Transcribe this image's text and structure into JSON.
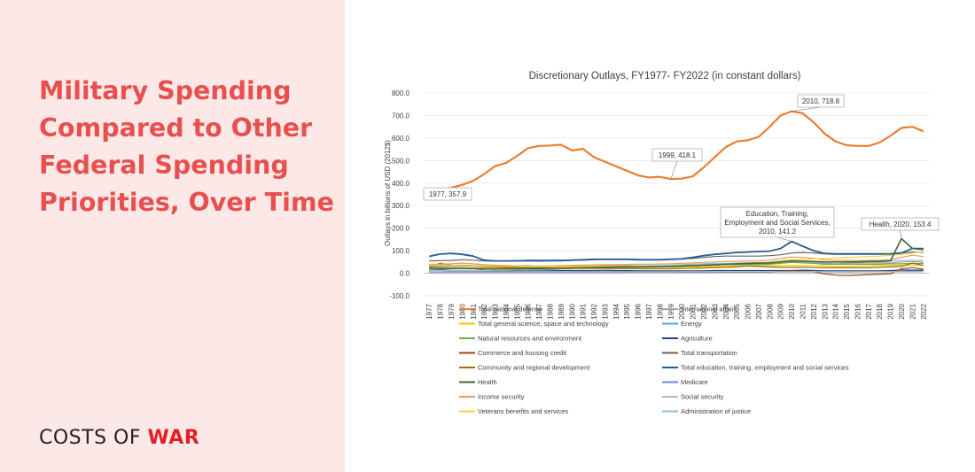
{
  "headline": {
    "lines": [
      "Military Spending",
      "Compared to Other",
      "Federal Spending",
      "Priorities, Over Time"
    ]
  },
  "brand": {
    "part1": "COSTS OF ",
    "part2": "WAR"
  },
  "colors": {
    "accent": "#e8504f",
    "panel_bg": "#fde8e8",
    "brand_red": "#e31e24"
  },
  "chart_data": {
    "type": "line",
    "title": "Discretionary Outlays, FY1977- FY2022 (in constant dollars)",
    "ylabel": "Outlays in billions of USD (2012$)",
    "xlabel": "",
    "ylim": [
      -100,
      800
    ],
    "yticks": [
      "-100.0",
      "0.0",
      "100.0",
      "200.0",
      "300.0",
      "400.0",
      "500.0",
      "600.0",
      "700.0",
      "800.0"
    ],
    "grid": true,
    "legend_position": "bottom",
    "x": [
      1977,
      1978,
      1979,
      1980,
      1981,
      1982,
      1983,
      1984,
      1985,
      1986,
      1987,
      1988,
      1989,
      1990,
      1991,
      1992,
      1993,
      1994,
      1995,
      1996,
      1997,
      1998,
      1999,
      2000,
      2001,
      2002,
      2003,
      2004,
      2005,
      2006,
      2007,
      2008,
      2009,
      2010,
      2011,
      2012,
      2013,
      2014,
      2015,
      2016,
      2017,
      2018,
      2019,
      2020,
      2021,
      2022
    ],
    "series": [
      {
        "name": "Total national defense",
        "color": "#ed7d31",
        "width": 2.2,
        "values": [
          357.9,
          370,
          380,
          392,
          410,
          440,
          475,
          490,
          520,
          555,
          565,
          567,
          570,
          545,
          552,
          515,
          495,
          475,
          455,
          435,
          425,
          428,
          418.1,
          420,
          430,
          470,
          515,
          560,
          585,
          590,
          605,
          650,
          700,
          718.8,
          710,
          670,
          620,
          585,
          568,
          565,
          565,
          580,
          610,
          645,
          650,
          630
        ]
      },
      {
        "name": "International affairs",
        "color": "#a5a5a5",
        "values": [
          28,
          28,
          30,
          30,
          32,
          28,
          28,
          30,
          32,
          34,
          28,
          28,
          28,
          30,
          32,
          30,
          30,
          28,
          26,
          26,
          26,
          27,
          28,
          28,
          28,
          30,
          36,
          40,
          42,
          40,
          42,
          45,
          50,
          52,
          50,
          48,
          44,
          42,
          44,
          46,
          46,
          46,
          46,
          50,
          52,
          50
        ]
      },
      {
        "name": "Total general science, space and technology",
        "color": "#ffc000",
        "values": [
          22,
          22,
          23,
          23,
          23,
          22,
          22,
          22,
          23,
          23,
          24,
          25,
          26,
          27,
          28,
          29,
          29,
          29,
          28,
          27,
          27,
          27,
          27,
          27,
          28,
          29,
          30,
          31,
          32,
          32,
          32,
          33,
          34,
          35,
          34,
          33,
          32,
          31,
          31,
          32,
          33,
          34,
          35,
          35,
          36,
          36
        ]
      },
      {
        "name": "Energy",
        "color": "#5b9bd5",
        "values": [
          15,
          18,
          20,
          22,
          22,
          14,
          10,
          10,
          10,
          10,
          8,
          8,
          7,
          7,
          8,
          8,
          8,
          8,
          8,
          7,
          7,
          7,
          6,
          6,
          6,
          6,
          6,
          6,
          6,
          6,
          6,
          6,
          8,
          12,
          14,
          12,
          10,
          9,
          9,
          9,
          9,
          9,
          9,
          9,
          10,
          12
        ]
      },
      {
        "name": "Natural resources and environment",
        "color": "#70ad47",
        "values": [
          30,
          32,
          34,
          36,
          34,
          32,
          30,
          30,
          30,
          30,
          30,
          30,
          30,
          31,
          31,
          32,
          33,
          33,
          33,
          32,
          32,
          32,
          33,
          34,
          35,
          36,
          37,
          38,
          38,
          38,
          38,
          40,
          44,
          48,
          46,
          44,
          40,
          40,
          40,
          40,
          40,
          40,
          42,
          42,
          44,
          44
        ]
      },
      {
        "name": "Agriculture",
        "color": "#264478",
        "values": [
          12,
          14,
          12,
          12,
          12,
          12,
          14,
          13,
          14,
          15,
          14,
          13,
          12,
          12,
          12,
          12,
          13,
          12,
          12,
          11,
          11,
          11,
          11,
          11,
          11,
          11,
          12,
          12,
          12,
          12,
          12,
          12,
          12,
          12,
          12,
          12,
          11,
          11,
          11,
          11,
          11,
          11,
          12,
          14,
          14,
          13
        ]
      },
      {
        "name": "Commerce and housing credit",
        "color": "#9e480e",
        "values": [
          12,
          12,
          10,
          10,
          10,
          8,
          8,
          8,
          7,
          7,
          6,
          6,
          6,
          6,
          6,
          6,
          6,
          5,
          5,
          5,
          5,
          5,
          5,
          5,
          5,
          5,
          5,
          5,
          5,
          5,
          5,
          5,
          8,
          10,
          8,
          6,
          -3,
          -8,
          -10,
          -8,
          -6,
          -4,
          -2,
          20,
          25,
          18
        ]
      },
      {
        "name": "Total transportation",
        "color": "#636363",
        "values": [
          55,
          56,
          57,
          60,
          58,
          55,
          55,
          55,
          56,
          58,
          58,
          58,
          58,
          58,
          58,
          60,
          62,
          62,
          62,
          62,
          60,
          60,
          62,
          64,
          66,
          70,
          74,
          76,
          76,
          76,
          76,
          78,
          82,
          90,
          92,
          90,
          86,
          84,
          84,
          84,
          84,
          84,
          86,
          90,
          94,
          92
        ]
      },
      {
        "name": "Community and regional development",
        "color": "#997300",
        "values": [
          25,
          45,
          35,
          34,
          32,
          30,
          28,
          26,
          25,
          24,
          24,
          23,
          22,
          22,
          22,
          22,
          22,
          21,
          21,
          20,
          20,
          20,
          20,
          21,
          22,
          23,
          25,
          26,
          28,
          32,
          30,
          28,
          26,
          26,
          26,
          25,
          24,
          24,
          24,
          24,
          24,
          26,
          28,
          30,
          45,
          35
        ]
      },
      {
        "name": "Total education, training, employment and social services",
        "color": "#255e91",
        "width": 1.8,
        "values": [
          75,
          85,
          88,
          84,
          76,
          58,
          55,
          55,
          55,
          56,
          55,
          56,
          56,
          58,
          60,
          62,
          62,
          62,
          62,
          60,
          60,
          60,
          62,
          64,
          70,
          78,
          84,
          88,
          92,
          94,
          96,
          98,
          110,
          141.2,
          120,
          100,
          88,
          86,
          86,
          86,
          86,
          86,
          86,
          90,
          110,
          110
        ]
      },
      {
        "name": "Health",
        "color": "#43682b",
        "width": 1.6,
        "values": [
          22,
          22,
          22,
          22,
          21,
          20,
          20,
          20,
          20,
          20,
          21,
          22,
          22,
          23,
          24,
          25,
          26,
          27,
          28,
          28,
          29,
          29,
          30,
          32,
          34,
          36,
          38,
          40,
          42,
          44,
          45,
          46,
          50,
          55,
          54,
          52,
          50,
          50,
          50,
          50,
          52,
          52,
          55,
          153.4,
          110,
          105
        ]
      },
      {
        "name": "Medicare",
        "color": "#698ed0",
        "values": [
          3,
          3,
          3,
          3,
          3,
          3,
          3,
          3,
          3,
          3,
          3,
          3,
          3,
          3,
          3,
          3,
          3,
          3,
          4,
          4,
          4,
          4,
          4,
          4,
          4,
          4,
          5,
          5,
          5,
          5,
          5,
          5,
          6,
          6,
          6,
          6,
          6,
          6,
          6,
          6,
          7,
          7,
          7,
          7,
          7,
          7
        ]
      },
      {
        "name": "Income security",
        "color": "#f1975a",
        "values": [
          40,
          40,
          42,
          45,
          42,
          38,
          36,
          34,
          33,
          33,
          32,
          33,
          34,
          35,
          36,
          37,
          38,
          38,
          39,
          40,
          40,
          41,
          42,
          44,
          46,
          48,
          50,
          52,
          53,
          54,
          55,
          58,
          65,
          72,
          70,
          66,
          60,
          58,
          57,
          57,
          57,
          58,
          60,
          70,
          80,
          74
        ]
      },
      {
        "name": "Social security",
        "color": "#b7b7b7",
        "values": [
          6,
          6,
          6,
          6,
          6,
          6,
          6,
          6,
          6,
          6,
          6,
          6,
          6,
          6,
          6,
          6,
          6,
          6,
          6,
          6,
          6,
          6,
          6,
          7,
          7,
          7,
          7,
          7,
          7,
          7,
          7,
          7,
          7,
          7,
          7,
          7,
          7,
          7,
          7,
          7,
          7,
          7,
          7,
          7,
          7,
          7
        ]
      },
      {
        "name": "Veterans benefits and services",
        "color": "#ffcd33",
        "values": [
          35,
          35,
          34,
          34,
          33,
          32,
          32,
          31,
          31,
          31,
          30,
          30,
          30,
          30,
          30,
          30,
          30,
          30,
          30,
          30,
          30,
          31,
          32,
          33,
          34,
          36,
          38,
          40,
          42,
          44,
          46,
          50,
          55,
          60,
          62,
          64,
          66,
          68,
          70,
          72,
          74,
          76,
          80,
          84,
          90,
          95
        ]
      },
      {
        "name": "Administration of justice",
        "color": "#8cc2e6",
        "values": [
          12,
          12,
          12,
          12,
          12,
          12,
          13,
          14,
          15,
          16,
          17,
          18,
          20,
          22,
          24,
          26,
          27,
          28,
          28,
          30,
          32,
          34,
          36,
          38,
          40,
          42,
          44,
          44,
          45,
          46,
          47,
          48,
          50,
          52,
          52,
          51,
          50,
          50,
          51,
          52,
          53,
          54,
          55,
          56,
          57,
          58
        ]
      }
    ],
    "annotations": [
      {
        "lines": [
          "1977, 357.9"
        ],
        "year": 1977,
        "value": 357.9
      },
      {
        "lines": [
          "1999, 418.1"
        ],
        "year": 1999,
        "value": 418.1
      },
      {
        "lines": [
          "2010, 718.8"
        ],
        "year": 2010,
        "value": 718.8
      },
      {
        "lines": [
          "Education, Training,",
          "Employment and Social Services,",
          "2010, 141.2"
        ],
        "year": 2010,
        "value": 141.2
      },
      {
        "lines": [
          "Health, 2020, 153.4"
        ],
        "year": 2020,
        "value": 153.4
      }
    ]
  }
}
